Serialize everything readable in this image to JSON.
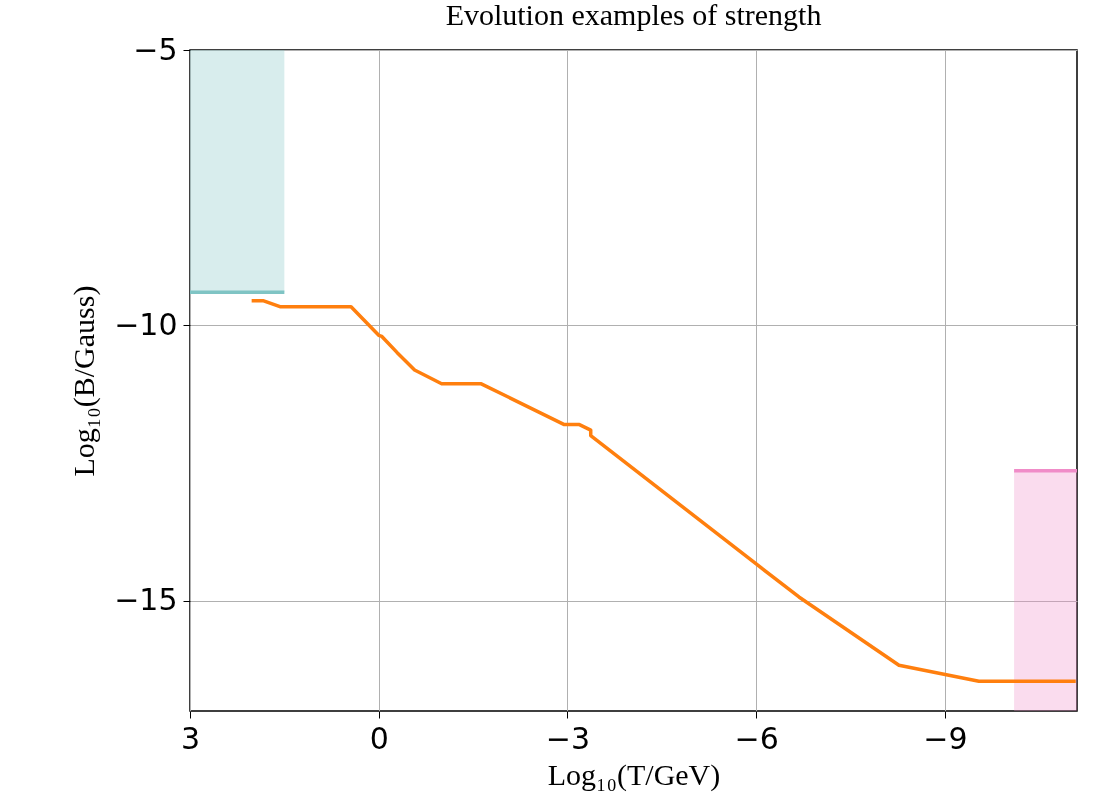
{
  "chart_data": {
    "type": "line",
    "title": "Evolution examples of strength",
    "xlabel": "Log₁₀(T/GeV)",
    "ylabel": "Log₁₀(B/Gauss)",
    "x": [
      2.02,
      1.84,
      1.57,
      0.44,
      0,
      -0.05,
      -0.29,
      -0.57,
      -1.0,
      -1.63,
      -2.95,
      -3.19,
      -3.37,
      -3.37,
      -6.0,
      -6.68,
      -8.27,
      -9.54,
      -11.08
    ],
    "series": [
      {
        "color": "#ff7f0e",
        "values": [
          -9.55,
          -9.55,
          -9.66,
          -9.66,
          -10.18,
          -10.2,
          -10.49,
          -10.81,
          -11.06,
          -11.06,
          -11.8,
          -11.8,
          -11.9,
          -12.0,
          -14.33,
          -14.93,
          -16.17,
          -16.46,
          -16.46
        ]
      },
      {
        "color": "#7fc4c4",
        "x": [
          3,
          1.5
        ],
        "values": [
          -9.4,
          -9.4
        ],
        "lower": [
          -9.4,
          -9.4
        ],
        "upper": [
          -5,
          -5
        ]
      },
      {
        "color": "#f08cc8",
        "x": [
          -10.1,
          -11.1
        ],
        "values": [
          -12.64,
          -12.64
        ],
        "lower": [
          -17,
          -17
        ],
        "upper": [
          -12.64,
          -12.64
        ]
      }
    ],
    "xlim": [
      3,
      -11.1
    ],
    "ylim": [
      -17,
      -5
    ],
    "xticks": [
      3,
      0,
      -3,
      -6,
      -9
    ],
    "yticks": [
      -5,
      -10,
      -15
    ],
    "grid": true
  }
}
